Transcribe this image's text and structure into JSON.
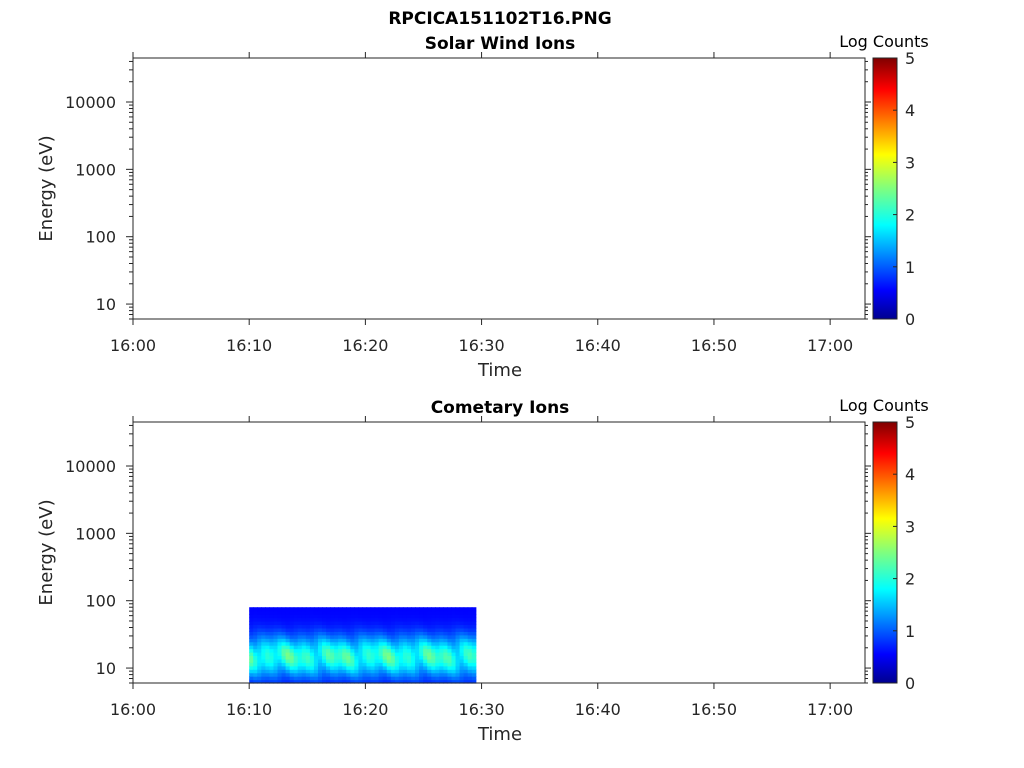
{
  "figure": {
    "title": "RPCICA151102T16.PNG"
  },
  "colormap": "jet",
  "chart_data": [
    {
      "type": "heatmap",
      "title": "Solar Wind Ions",
      "xlabel": "Time",
      "ylabel": "Energy (eV)",
      "x_ticks": [
        "16:00",
        "16:10",
        "16:20",
        "16:30",
        "16:40",
        "16:50",
        "17:00"
      ],
      "xlim": [
        "16:00",
        "17:03"
      ],
      "y_ticks": [
        "10",
        "100",
        "1000",
        "10000"
      ],
      "yscale": "log",
      "ylim": [
        6,
        45000
      ],
      "colorbar": {
        "label": "Log Counts",
        "range": [
          0,
          5
        ],
        "ticks": [
          "0",
          "1",
          "2",
          "3",
          "4",
          "5"
        ]
      },
      "data": []
    },
    {
      "type": "heatmap",
      "title": "Cometary Ions",
      "xlabel": "Time",
      "ylabel": "Energy (eV)",
      "x_ticks": [
        "16:00",
        "16:10",
        "16:20",
        "16:30",
        "16:40",
        "16:50",
        "17:00"
      ],
      "xlim": [
        "16:00",
        "17:03"
      ],
      "y_ticks": [
        "10",
        "100",
        "1000",
        "10000"
      ],
      "yscale": "log",
      "ylim": [
        6,
        45000
      ],
      "colorbar": {
        "label": "Log Counts",
        "range": [
          0,
          5
        ],
        "ticks": [
          "0",
          "1",
          "2",
          "3",
          "4",
          "5"
        ]
      },
      "data": [
        {
          "time_start": "16:10",
          "time_end": "16:29.5",
          "energy_min": 6,
          "energy_max": 80,
          "log_counts_range": [
            0.3,
            2.5
          ]
        }
      ]
    }
  ]
}
